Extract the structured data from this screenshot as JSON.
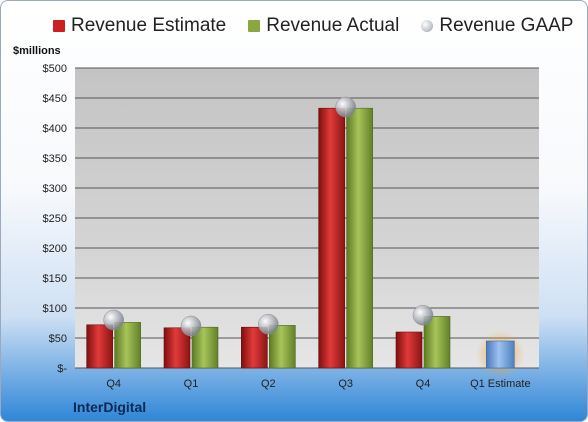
{
  "chart_data": {
    "type": "bar",
    "unit_label": "$millions",
    "categories": [
      "Q4",
      "Q1",
      "Q2",
      "Q3",
      "Q4",
      "Q1 Estimate"
    ],
    "series": [
      {
        "name": "Revenue Estimate",
        "values": [
          72,
          67,
          68,
          433,
          60,
          null
        ],
        "color": "#cc1f1f"
      },
      {
        "name": "Revenue Actual",
        "values": [
          76,
          68,
          71,
          433,
          86,
          null
        ],
        "color": "#8aa83f"
      },
      {
        "name": "Revenue GAAP",
        "values": [
          80,
          70,
          73,
          435,
          88,
          null
        ],
        "color": "#b9bcc4",
        "style": "ball"
      },
      {
        "name": "",
        "values": [
          null,
          null,
          null,
          null,
          null,
          45
        ],
        "color": "#6f9fdc",
        "glow": "#f0a030"
      }
    ],
    "yticks": [
      {
        "value": 0,
        "label": "$-"
      },
      {
        "value": 50,
        "label": "$50"
      },
      {
        "value": 100,
        "label": "$100"
      },
      {
        "value": 150,
        "label": "$150"
      },
      {
        "value": 200,
        "label": "$200"
      },
      {
        "value": 250,
        "label": "$250"
      },
      {
        "value": 300,
        "label": "$300"
      },
      {
        "value": 350,
        "label": "$350"
      },
      {
        "value": 400,
        "label": "$400"
      },
      {
        "value": 450,
        "label": "$450"
      },
      {
        "value": 500,
        "label": "$500"
      }
    ],
    "ylim": [
      0,
      500
    ],
    "grid": true,
    "legend_position": "top"
  },
  "brand": "InterDigital"
}
